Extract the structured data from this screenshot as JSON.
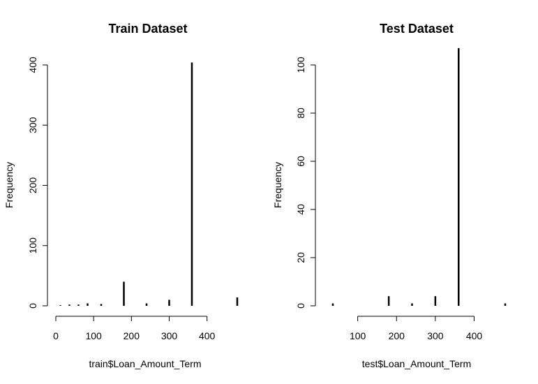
{
  "chart_data": [
    {
      "type": "bar",
      "title": "Train Dataset",
      "xlabel": "train$Loan_Amount_Term",
      "ylabel": "Frequency",
      "xlim": [
        0,
        480
      ],
      "ylim": [
        0,
        400
      ],
      "xticks": [
        0,
        100,
        200,
        300,
        400
      ],
      "yticks": [
        0,
        100,
        200,
        300,
        400
      ],
      "x": [
        12,
        36,
        60,
        84,
        120,
        180,
        240,
        300,
        360,
        480
      ],
      "values": [
        1,
        2,
        2,
        4,
        3,
        40,
        4,
        10,
        404,
        14
      ],
      "grid": false
    },
    {
      "type": "bar",
      "title": "Test Dataset",
      "xlabel": "test$Loan_Amount_Term",
      "ylabel": "Frequency",
      "xlim": [
        0,
        480
      ],
      "ylim": [
        0,
        100
      ],
      "xticks": [
        100,
        200,
        300,
        400
      ],
      "yticks": [
        0,
        20,
        40,
        60,
        80,
        100
      ],
      "x": [
        36,
        60,
        84,
        180,
        240,
        300,
        360,
        480
      ],
      "values": [
        1,
        0,
        0,
        4,
        1,
        4,
        107,
        1
      ],
      "grid": false
    }
  ]
}
